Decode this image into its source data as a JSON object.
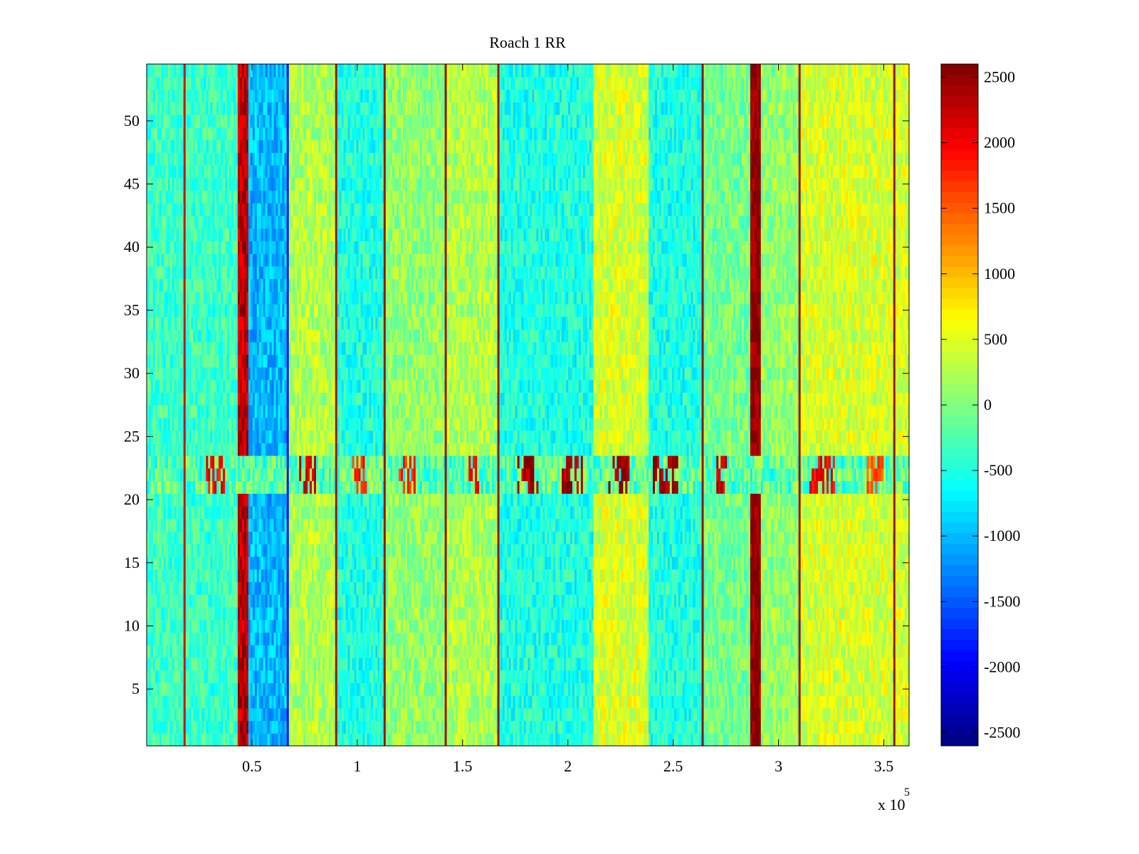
{
  "chart_data": {
    "type": "heatmap",
    "title": "Roach 1 RR",
    "xlabel": "",
    "ylabel": "",
    "x_multiplier_label": {
      "base": "x 10",
      "exponent": "5"
    },
    "xlim": [
      0,
      3.62
    ],
    "ylim": [
      0.5,
      54.5
    ],
    "x_ticks": [
      0.5,
      1,
      1.5,
      2,
      2.5,
      3,
      3.5
    ],
    "x_tick_labels": [
      "0.5",
      "1",
      "1.5",
      "2",
      "2.5",
      "3",
      "3.5"
    ],
    "y_ticks": [
      5,
      10,
      15,
      20,
      25,
      30,
      35,
      40,
      45,
      50
    ],
    "y_tick_labels": [
      "5",
      "10",
      "15",
      "20",
      "25",
      "30",
      "35",
      "40",
      "45",
      "50"
    ],
    "rows": 54,
    "colormap": "jet",
    "clim": [
      -2600,
      2600
    ],
    "colorbar": {
      "ticks": [
        -2500,
        -2000,
        -1500,
        -1000,
        -500,
        0,
        500,
        1000,
        1500,
        2000,
        2500
      ],
      "tick_labels": [
        "-2500",
        "-2000",
        "-1500",
        "-1000",
        "-500",
        "0",
        "500",
        "1000",
        "1500",
        "2000",
        "2500"
      ]
    },
    "column_bands": [
      {
        "x0": 0.0,
        "x1": 0.43,
        "value": -350
      },
      {
        "x0": 0.43,
        "x1": 0.48,
        "value": 2300
      },
      {
        "x0": 0.48,
        "x1": 0.67,
        "value": -1000
      },
      {
        "x0": 0.67,
        "x1": 0.9,
        "value": 250
      },
      {
        "x0": 0.9,
        "x1": 1.13,
        "value": -500
      },
      {
        "x0": 1.13,
        "x1": 1.42,
        "value": 100
      },
      {
        "x0": 1.42,
        "x1": 1.67,
        "value": 250
      },
      {
        "x0": 1.67,
        "x1": 2.12,
        "value": -500
      },
      {
        "x0": 2.12,
        "x1": 2.38,
        "value": 450
      },
      {
        "x0": 2.38,
        "x1": 2.64,
        "value": -500
      },
      {
        "x0": 2.64,
        "x1": 2.87,
        "value": -50
      },
      {
        "x0": 2.87,
        "x1": 2.92,
        "value": 2550
      },
      {
        "x0": 2.92,
        "x1": 3.1,
        "value": 100
      },
      {
        "x0": 3.1,
        "x1": 3.62,
        "value": 450
      }
    ],
    "vertical_lines": [
      {
        "x": 0.18,
        "value": 2200
      },
      {
        "x": 0.67,
        "value": -2000
      },
      {
        "x": 0.9,
        "value": 2500
      },
      {
        "x": 1.13,
        "value": 2500
      },
      {
        "x": 1.42,
        "value": 2500
      },
      {
        "x": 1.67,
        "value": 2500
      },
      {
        "x": 2.64,
        "value": 2500
      },
      {
        "x": 3.1,
        "value": 2500
      },
      {
        "x": 3.55,
        "value": 2500
      }
    ],
    "row_band": {
      "y0": 20.5,
      "y1": 23.5,
      "value": -200,
      "hot_clusters": [
        {
          "x0": 0.28,
          "x1": 0.37,
          "value": 2000
        },
        {
          "x0": 0.72,
          "x1": 0.8,
          "value": 2200
        },
        {
          "x0": 0.98,
          "x1": 1.05,
          "value": 1800
        },
        {
          "x0": 1.2,
          "x1": 1.28,
          "value": 1800
        },
        {
          "x0": 1.53,
          "x1": 1.58,
          "value": 2000
        },
        {
          "x0": 1.76,
          "x1": 1.86,
          "value": 2400
        },
        {
          "x0": 1.97,
          "x1": 2.07,
          "value": 2400
        },
        {
          "x0": 2.18,
          "x1": 2.29,
          "value": 2500
        },
        {
          "x0": 2.4,
          "x1": 2.52,
          "value": 2500
        },
        {
          "x0": 2.7,
          "x1": 2.76,
          "value": 2200
        },
        {
          "x0": 3.15,
          "x1": 3.27,
          "value": 2000
        },
        {
          "x0": 3.42,
          "x1": 3.5,
          "value": 1500
        }
      ]
    }
  }
}
